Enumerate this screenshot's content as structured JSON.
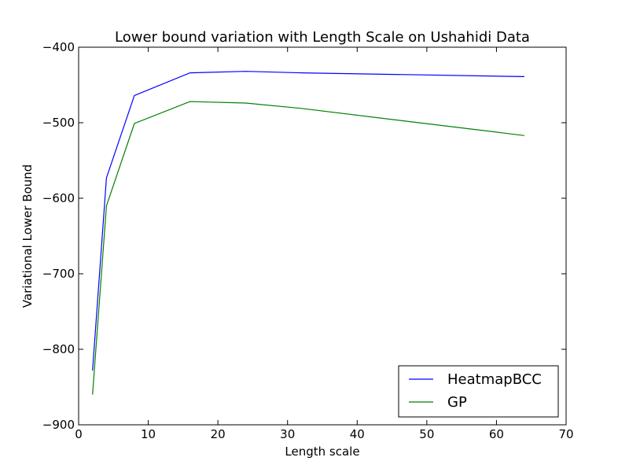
{
  "chart_data": {
    "type": "line",
    "title": "Lower bound variation with Length Scale on Ushahidi Data",
    "xlabel": "Length scale",
    "ylabel": "Variational Lower Bound",
    "xlim": [
      0,
      70
    ],
    "ylim": [
      -900,
      -400
    ],
    "xticks": [
      0,
      10,
      20,
      30,
      40,
      50,
      60,
      70
    ],
    "yticks": [
      -900,
      -800,
      -700,
      -600,
      -500,
      -400
    ],
    "xtick_labels": [
      "0",
      "10",
      "20",
      "30",
      "40",
      "50",
      "60",
      "70"
    ],
    "ytick_labels": [
      "−900",
      "−800",
      "−700",
      "−600",
      "−500",
      "−400"
    ],
    "grid": false,
    "legend_position": "bottom-right",
    "series": [
      {
        "name": "HeatmapBCC",
        "color": "#0000ff",
        "x": [
          2,
          4,
          8,
          16,
          24,
          32,
          64
        ],
        "y": [
          -828,
          -573,
          -464,
          -434,
          -432,
          -434,
          -439
        ]
      },
      {
        "name": "GP",
        "color": "#008000",
        "x": [
          2,
          4,
          8,
          16,
          24,
          32,
          64
        ],
        "y": [
          -860,
          -610,
          -501,
          -472,
          -474,
          -481,
          -517
        ]
      }
    ]
  }
}
